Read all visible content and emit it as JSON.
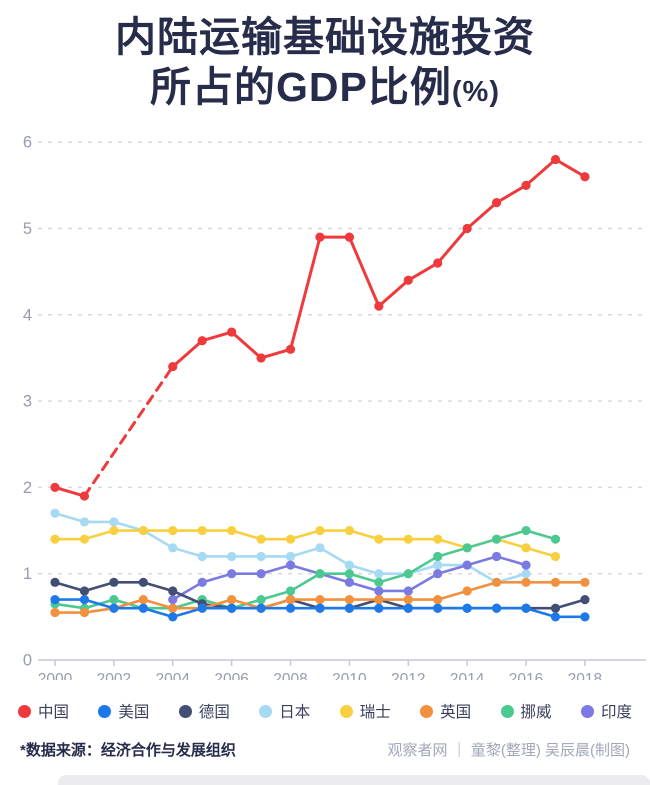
{
  "title": {
    "line1": "内陆运输基础设施投资",
    "line2_main": "所占的GDP比例",
    "line2_unit": "(%)"
  },
  "chart_data": {
    "type": "line",
    "title": "内陆运输基础设施投资所占的GDP比例(%)",
    "x": [
      2000,
      2001,
      2002,
      2003,
      2004,
      2005,
      2006,
      2007,
      2008,
      2009,
      2010,
      2011,
      2012,
      2013,
      2014,
      2015,
      2016,
      2017,
      2018
    ],
    "x_tick_labels": [
      "2000",
      "2002",
      "2004",
      "2006",
      "2008",
      "2010",
      "2012",
      "2014",
      "2016",
      "2018"
    ],
    "y_ticks": [
      0,
      1,
      2,
      3,
      4,
      5,
      6
    ],
    "ylim": [
      0,
      6.3
    ],
    "grid": "horizontal-dashed",
    "legend_position": "bottom",
    "series": [
      {
        "id": "china",
        "name": "中国",
        "color": "#ee3a3c",
        "dashed_between": [
          2001,
          2004
        ],
        "values": [
          2.0,
          1.9,
          null,
          null,
          3.4,
          3.7,
          3.8,
          3.5,
          3.6,
          4.9,
          4.9,
          4.1,
          4.4,
          4.6,
          5.0,
          5.3,
          5.5,
          5.8,
          5.6
        ]
      },
      {
        "id": "usa",
        "name": "美国",
        "color": "#1d79ea",
        "values": [
          0.7,
          0.7,
          0.6,
          0.6,
          0.5,
          0.6,
          0.6,
          0.6,
          0.6,
          0.6,
          0.6,
          0.6,
          0.6,
          0.6,
          0.6,
          0.6,
          0.6,
          0.5,
          0.5
        ]
      },
      {
        "id": "germany",
        "name": "德国",
        "color": "#434e74",
        "values": [
          0.9,
          0.8,
          0.9,
          0.9,
          0.8,
          0.65,
          0.6,
          0.6,
          0.7,
          0.6,
          0.6,
          0.7,
          0.6,
          0.6,
          0.6,
          0.6,
          0.6,
          0.6,
          0.7
        ]
      },
      {
        "id": "japan",
        "name": "日本",
        "color": "#a6d9f2",
        "values": [
          1.7,
          1.6,
          1.6,
          1.5,
          1.3,
          1.2,
          1.2,
          1.2,
          1.2,
          1.3,
          1.1,
          1.0,
          1.0,
          1.1,
          1.1,
          0.9,
          1.0,
          null,
          null
        ]
      },
      {
        "id": "switzerland",
        "name": "瑞士",
        "color": "#f8cf3e",
        "values": [
          1.4,
          1.4,
          1.5,
          1.5,
          1.5,
          1.5,
          1.5,
          1.4,
          1.4,
          1.5,
          1.5,
          1.4,
          1.4,
          1.4,
          1.3,
          1.4,
          1.3,
          1.2,
          null
        ]
      },
      {
        "id": "uk",
        "name": "英国",
        "color": "#f2913d",
        "values": [
          0.55,
          0.55,
          0.6,
          0.7,
          0.6,
          0.6,
          0.7,
          0.6,
          0.7,
          0.7,
          0.7,
          0.7,
          0.7,
          0.7,
          0.8,
          0.9,
          0.9,
          0.9,
          0.9
        ]
      },
      {
        "id": "norway",
        "name": "挪威",
        "color": "#4cc990",
        "values": [
          0.65,
          0.6,
          0.7,
          0.6,
          0.6,
          0.7,
          0.6,
          0.7,
          0.8,
          1.0,
          1.0,
          0.9,
          1.0,
          1.2,
          1.3,
          1.4,
          1.5,
          1.4,
          null
        ]
      },
      {
        "id": "india",
        "name": "印度",
        "color": "#7b79e2",
        "values": [
          null,
          null,
          null,
          null,
          0.7,
          0.9,
          1.0,
          1.0,
          1.1,
          1.0,
          0.9,
          0.8,
          0.8,
          1.0,
          1.1,
          1.2,
          1.1,
          null,
          null
        ]
      }
    ]
  },
  "footer": {
    "source": "*数据来源：经济合作与发展组织",
    "credit": "观察者网 ｜ 童黎(整理) 吴辰晨(制图)"
  }
}
